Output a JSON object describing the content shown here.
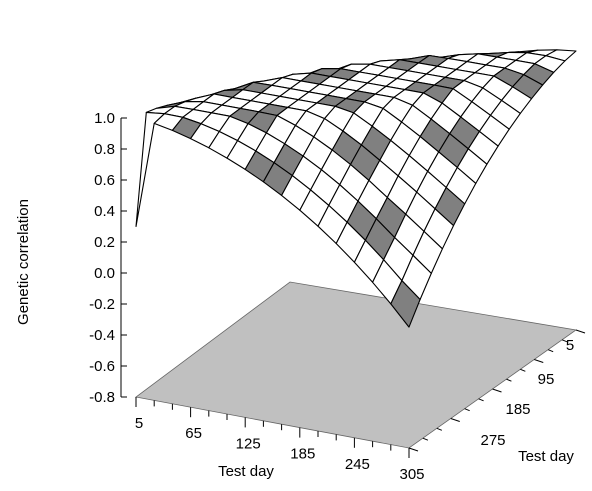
{
  "chart_data": {
    "type": "surface3d",
    "zlabel": "Genetic correlation",
    "xlabel": "Test day",
    "ylabel": "Test day",
    "zlim": [
      -0.8,
      1.0
    ],
    "z_ticks": [
      "1.0",
      "0.8",
      "0.6",
      "0.4",
      "0.2",
      "0.0",
      "-0.2",
      "-0.4",
      "-0.6",
      "-0.8"
    ],
    "x_ticks": [
      "5",
      "65",
      "125",
      "185",
      "245",
      "305"
    ],
    "y_ticks": [
      "5",
      "95",
      "185",
      "275"
    ],
    "grid_days": [
      5,
      25,
      45,
      65,
      85,
      105,
      125,
      145,
      165,
      185,
      205,
      225,
      245,
      265,
      285,
      305
    ],
    "peak_correlation": 1.0,
    "min_correlation": -0.12,
    "end_correlation": 0.3,
    "band_colors": [
      "#ffffff",
      "#808080"
    ],
    "floor_color": "#c0c0c0"
  }
}
